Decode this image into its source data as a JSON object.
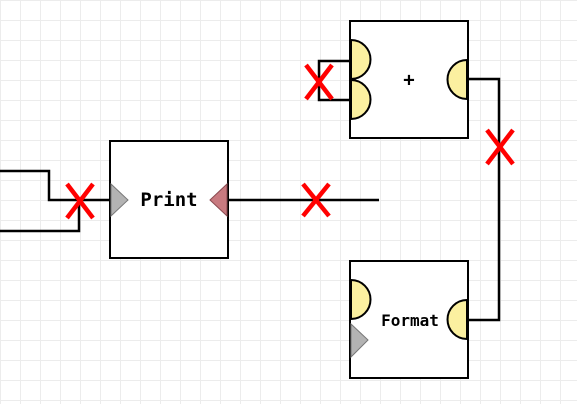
{
  "nodes": {
    "add": {
      "label": "+"
    },
    "print": {
      "label": "Print"
    },
    "format": {
      "label": "Format"
    }
  },
  "colors": {
    "grid": "#ececec",
    "port_value": "#fbf0a0",
    "port_exec_in": "#b3b3b3",
    "port_exec_out": "#c87a80",
    "broken_mark": "#ff0000"
  },
  "broken_connection_icon": "red-x-icon"
}
